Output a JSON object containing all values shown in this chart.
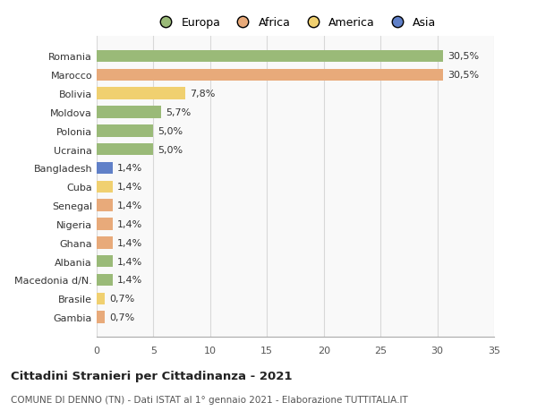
{
  "countries": [
    "Romania",
    "Marocco",
    "Bolivia",
    "Moldova",
    "Polonia",
    "Ucraina",
    "Bangladesh",
    "Cuba",
    "Senegal",
    "Nigeria",
    "Ghana",
    "Albania",
    "Macedonia d/N.",
    "Brasile",
    "Gambia"
  ],
  "values": [
    30.5,
    30.5,
    7.8,
    5.7,
    5.0,
    5.0,
    1.4,
    1.4,
    1.4,
    1.4,
    1.4,
    1.4,
    1.4,
    0.7,
    0.7
  ],
  "labels": [
    "30,5%",
    "30,5%",
    "7,8%",
    "5,7%",
    "5,0%",
    "5,0%",
    "1,4%",
    "1,4%",
    "1,4%",
    "1,4%",
    "1,4%",
    "1,4%",
    "1,4%",
    "0,7%",
    "0,7%"
  ],
  "colors": [
    "#9aba78",
    "#e8aa7a",
    "#f0d070",
    "#9aba78",
    "#9aba78",
    "#9aba78",
    "#6080c8",
    "#f0d070",
    "#e8aa7a",
    "#e8aa7a",
    "#e8aa7a",
    "#9aba78",
    "#9aba78",
    "#f0d070",
    "#e8aa7a"
  ],
  "legend_labels": [
    "Europa",
    "Africa",
    "America",
    "Asia"
  ],
  "legend_colors": [
    "#9aba78",
    "#e8aa7a",
    "#f0d070",
    "#6080c8"
  ],
  "xlim": [
    0,
    35
  ],
  "xticks": [
    0,
    5,
    10,
    15,
    20,
    25,
    30,
    35
  ],
  "title": "Cittadini Stranieri per Cittadinanza - 2021",
  "subtitle": "COMUNE DI DENNO (TN) - Dati ISTAT al 1° gennaio 2021 - Elaborazione TUTTITALIA.IT",
  "background_color": "#ffffff",
  "plot_bg_color": "#f9f9f9",
  "grid_color": "#d8d8d8"
}
